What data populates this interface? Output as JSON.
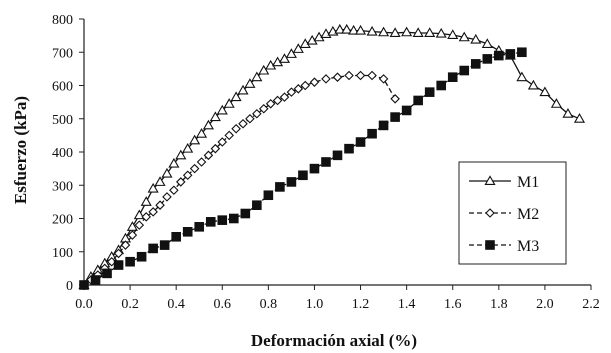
{
  "chart_data": {
    "type": "line",
    "title": "",
    "xlabel": "Deformación axial  (%)",
    "ylabel": "Esfuerzo (kPa)",
    "xlim": [
      0.0,
      2.2
    ],
    "ylim": [
      0,
      800
    ],
    "xticks": [
      0.0,
      0.2,
      0.4,
      0.6,
      0.8,
      1.0,
      1.2,
      1.4,
      1.6,
      1.8,
      2.0,
      2.2
    ],
    "xtick_labels": [
      "0.0",
      "0.2",
      "0.4",
      "0.6",
      "0.8",
      "1.0",
      "1.2",
      "1.4",
      "1.6",
      "1.8",
      "2.0",
      "2.2"
    ],
    "yticks": [
      0,
      100,
      200,
      300,
      400,
      500,
      600,
      700,
      800
    ],
    "ytick_labels": [
      "0",
      "100",
      "200",
      "300",
      "400",
      "500",
      "600",
      "700",
      "800"
    ],
    "grid": false,
    "legend_position": "inside-right",
    "series": [
      {
        "name": "M1",
        "marker": "open-triangle",
        "line_style": "solid",
        "color": "#111111",
        "x": [
          0.0,
          0.03,
          0.06,
          0.09,
          0.12,
          0.15,
          0.18,
          0.21,
          0.24,
          0.27,
          0.3,
          0.33,
          0.36,
          0.39,
          0.42,
          0.45,
          0.48,
          0.51,
          0.54,
          0.57,
          0.6,
          0.63,
          0.66,
          0.69,
          0.72,
          0.75,
          0.78,
          0.81,
          0.84,
          0.87,
          0.9,
          0.93,
          0.96,
          0.99,
          1.02,
          1.05,
          1.08,
          1.11,
          1.14,
          1.17,
          1.2,
          1.25,
          1.3,
          1.35,
          1.4,
          1.45,
          1.5,
          1.55,
          1.6,
          1.65,
          1.7,
          1.75,
          1.8,
          1.85,
          1.9,
          1.95,
          2.0,
          2.05,
          2.1,
          2.15
        ],
        "y": [
          0,
          25,
          45,
          65,
          85,
          105,
          140,
          175,
          210,
          250,
          290,
          310,
          335,
          365,
          390,
          410,
          435,
          455,
          480,
          505,
          525,
          545,
          565,
          585,
          605,
          625,
          645,
          660,
          670,
          680,
          695,
          710,
          725,
          735,
          745,
          755,
          762,
          768,
          768,
          765,
          765,
          762,
          760,
          758,
          760,
          758,
          758,
          756,
          752,
          745,
          738,
          725,
          705,
          690,
          625,
          600,
          580,
          545,
          515,
          500
        ]
      },
      {
        "name": "M2",
        "marker": "open-diamond",
        "line_style": "dashed",
        "color": "#111111",
        "x": [
          0.0,
          0.03,
          0.06,
          0.09,
          0.12,
          0.15,
          0.18,
          0.21,
          0.24,
          0.27,
          0.3,
          0.33,
          0.36,
          0.39,
          0.42,
          0.45,
          0.48,
          0.51,
          0.54,
          0.57,
          0.6,
          0.63,
          0.66,
          0.69,
          0.72,
          0.75,
          0.78,
          0.81,
          0.84,
          0.87,
          0.9,
          0.93,
          0.96,
          1.0,
          1.05,
          1.1,
          1.15,
          1.2,
          1.25,
          1.3,
          1.35
        ],
        "y": [
          0,
          15,
          30,
          50,
          70,
          95,
          120,
          150,
          180,
          205,
          220,
          240,
          265,
          285,
          310,
          330,
          350,
          370,
          390,
          410,
          430,
          450,
          470,
          485,
          500,
          515,
          530,
          545,
          555,
          565,
          580,
          590,
          600,
          610,
          620,
          625,
          630,
          630,
          630,
          620,
          560
        ]
      },
      {
        "name": "M3",
        "marker": "filled-square",
        "line_style": "dashed",
        "color": "#111111",
        "x": [
          0.0,
          0.05,
          0.1,
          0.15,
          0.2,
          0.25,
          0.3,
          0.35,
          0.4,
          0.45,
          0.5,
          0.55,
          0.6,
          0.65,
          0.7,
          0.75,
          0.8,
          0.85,
          0.9,
          0.95,
          1.0,
          1.05,
          1.1,
          1.15,
          1.2,
          1.25,
          1.3,
          1.35,
          1.4,
          1.45,
          1.5,
          1.55,
          1.6,
          1.65,
          1.7,
          1.75,
          1.8,
          1.85,
          1.9
        ],
        "y": [
          0,
          15,
          35,
          60,
          70,
          85,
          110,
          120,
          145,
          160,
          175,
          190,
          195,
          200,
          215,
          240,
          270,
          295,
          310,
          330,
          350,
          370,
          390,
          410,
          430,
          455,
          480,
          505,
          525,
          555,
          580,
          600,
          625,
          645,
          665,
          680,
          690,
          695,
          700
        ]
      }
    ]
  }
}
